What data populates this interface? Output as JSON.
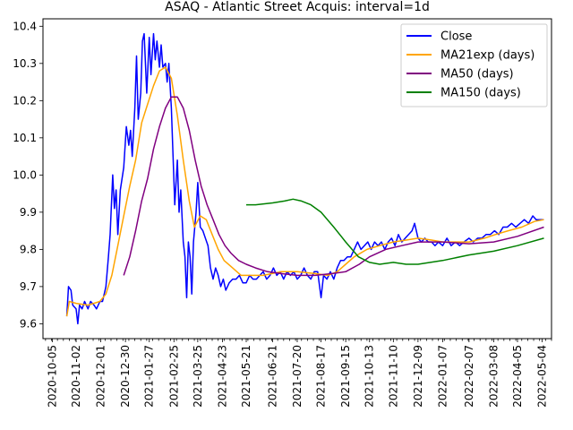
{
  "chart_data": {
    "type": "line",
    "title": "ASAQ - Atlantic Street Acquis: interval=1d",
    "xlabel": "",
    "ylabel": "",
    "xlim": [
      "2020-09-24",
      "2022-05-15"
    ],
    "ylim": [
      9.56,
      10.42
    ],
    "yticks": [
      9.6,
      9.7,
      9.8,
      9.9,
      10.0,
      10.1,
      10.2,
      10.3,
      10.4
    ],
    "ytick_labels": [
      "9.6",
      "9.7",
      "9.8",
      "9.9",
      "10.0",
      "10.1",
      "10.2",
      "10.3",
      "10.4"
    ],
    "xticks": [
      "2020-10-05",
      "2020-11-02",
      "2020-12-01",
      "2020-12-30",
      "2021-01-27",
      "2021-02-25",
      "2021-03-25",
      "2021-04-23",
      "2021-05-21",
      "2021-06-21",
      "2021-07-20",
      "2021-08-17",
      "2021-09-15",
      "2021-10-13",
      "2021-11-10",
      "2021-12-09",
      "2022-01-07",
      "2022-02-07",
      "2022-03-08",
      "2022-04-05",
      "2022-05-04"
    ],
    "grid": false,
    "legend_position": "upper right",
    "series": [
      {
        "name": "Close",
        "color": "#0000ff",
        "points": [
          [
            "2020-10-22",
            9.62
          ],
          [
            "2020-10-24",
            9.7
          ],
          [
            "2020-10-27",
            9.69
          ],
          [
            "2020-10-29",
            9.65
          ],
          [
            "2020-11-02",
            9.64
          ],
          [
            "2020-11-04",
            9.6
          ],
          [
            "2020-11-06",
            9.65
          ],
          [
            "2020-11-09",
            9.64
          ],
          [
            "2020-11-12",
            9.66
          ],
          [
            "2020-11-16",
            9.64
          ],
          [
            "2020-11-19",
            9.66
          ],
          [
            "2020-11-23",
            9.65
          ],
          [
            "2020-11-26",
            9.64
          ],
          [
            "2020-11-30",
            9.66
          ],
          [
            "2020-12-03",
            9.66
          ],
          [
            "2020-12-07",
            9.7
          ],
          [
            "2020-12-10",
            9.78
          ],
          [
            "2020-12-12",
            9.84
          ],
          [
            "2020-12-15",
            10.0
          ],
          [
            "2020-12-17",
            9.91
          ],
          [
            "2020-12-19",
            9.96
          ],
          [
            "2020-12-21",
            9.84
          ],
          [
            "2020-12-24",
            9.96
          ],
          [
            "2020-12-28",
            10.02
          ],
          [
            "2020-12-31",
            10.13
          ],
          [
            "2021-01-03",
            10.08
          ],
          [
            "2021-01-05",
            10.12
          ],
          [
            "2021-01-07",
            10.05
          ],
          [
            "2021-01-10",
            10.18
          ],
          [
            "2021-01-12",
            10.32
          ],
          [
            "2021-01-14",
            10.15
          ],
          [
            "2021-01-17",
            10.22
          ],
          [
            "2021-01-19",
            10.36
          ],
          [
            "2021-01-21",
            10.38
          ],
          [
            "2021-01-24",
            10.22
          ],
          [
            "2021-01-27",
            10.37
          ],
          [
            "2021-01-29",
            10.27
          ],
          [
            "2021-02-01",
            10.38
          ],
          [
            "2021-02-03",
            10.31
          ],
          [
            "2021-02-05",
            10.36
          ],
          [
            "2021-02-08",
            10.29
          ],
          [
            "2021-02-10",
            10.35
          ],
          [
            "2021-02-12",
            10.29
          ],
          [
            "2021-02-15",
            10.3
          ],
          [
            "2021-02-17",
            10.25
          ],
          [
            "2021-02-19",
            10.3
          ],
          [
            "2021-02-22",
            10.18
          ],
          [
            "2021-02-24",
            10.05
          ],
          [
            "2021-02-26",
            9.92
          ],
          [
            "2021-03-01",
            10.04
          ],
          [
            "2021-03-03",
            9.9
          ],
          [
            "2021-03-05",
            9.96
          ],
          [
            "2021-03-08",
            9.82
          ],
          [
            "2021-03-10",
            9.78
          ],
          [
            "2021-03-12",
            9.67
          ],
          [
            "2021-03-14",
            9.82
          ],
          [
            "2021-03-16",
            9.78
          ],
          [
            "2021-03-18",
            9.68
          ],
          [
            "2021-03-20",
            9.82
          ],
          [
            "2021-03-23",
            9.9
          ],
          [
            "2021-03-25",
            9.98
          ],
          [
            "2021-03-28",
            9.86
          ],
          [
            "2021-03-31",
            9.85
          ],
          [
            "2021-04-03",
            9.83
          ],
          [
            "2021-04-06",
            9.81
          ],
          [
            "2021-04-09",
            9.75
          ],
          [
            "2021-04-12",
            9.72
          ],
          [
            "2021-04-15",
            9.75
          ],
          [
            "2021-04-18",
            9.73
          ],
          [
            "2021-04-21",
            9.7
          ],
          [
            "2021-04-24",
            9.72
          ],
          [
            "2021-04-27",
            9.69
          ],
          [
            "2021-05-01",
            9.71
          ],
          [
            "2021-05-05",
            9.72
          ],
          [
            "2021-05-09",
            9.72
          ],
          [
            "2021-05-13",
            9.73
          ],
          [
            "2021-05-17",
            9.71
          ],
          [
            "2021-05-21",
            9.71
          ],
          [
            "2021-05-25",
            9.73
          ],
          [
            "2021-05-29",
            9.72
          ],
          [
            "2021-06-02",
            9.72
          ],
          [
            "2021-06-06",
            9.73
          ],
          [
            "2021-06-10",
            9.74
          ],
          [
            "2021-06-14",
            9.72
          ],
          [
            "2021-06-18",
            9.73
          ],
          [
            "2021-06-22",
            9.75
          ],
          [
            "2021-06-26",
            9.73
          ],
          [
            "2021-06-30",
            9.74
          ],
          [
            "2021-07-04",
            9.72
          ],
          [
            "2021-07-08",
            9.74
          ],
          [
            "2021-07-12",
            9.73
          ],
          [
            "2021-07-16",
            9.74
          ],
          [
            "2021-07-20",
            9.72
          ],
          [
            "2021-07-24",
            9.73
          ],
          [
            "2021-07-28",
            9.75
          ],
          [
            "2021-08-01",
            9.73
          ],
          [
            "2021-08-05",
            9.72
          ],
          [
            "2021-08-09",
            9.74
          ],
          [
            "2021-08-13",
            9.74
          ],
          [
            "2021-08-17",
            9.67
          ],
          [
            "2021-08-20",
            9.73
          ],
          [
            "2021-08-24",
            9.72
          ],
          [
            "2021-08-28",
            9.74
          ],
          [
            "2021-09-01",
            9.72
          ],
          [
            "2021-09-05",
            9.75
          ],
          [
            "2021-09-09",
            9.77
          ],
          [
            "2021-09-13",
            9.77
          ],
          [
            "2021-09-17",
            9.78
          ],
          [
            "2021-09-21",
            9.78
          ],
          [
            "2021-09-25",
            9.8
          ],
          [
            "2021-09-29",
            9.82
          ],
          [
            "2021-10-03",
            9.8
          ],
          [
            "2021-10-07",
            9.81
          ],
          [
            "2021-10-11",
            9.82
          ],
          [
            "2021-10-15",
            9.8
          ],
          [
            "2021-10-19",
            9.82
          ],
          [
            "2021-10-23",
            9.81
          ],
          [
            "2021-10-27",
            9.82
          ],
          [
            "2021-10-31",
            9.8
          ],
          [
            "2021-11-04",
            9.82
          ],
          [
            "2021-11-08",
            9.83
          ],
          [
            "2021-11-12",
            9.81
          ],
          [
            "2021-11-16",
            9.84
          ],
          [
            "2021-11-20",
            9.82
          ],
          [
            "2021-11-24",
            9.83
          ],
          [
            "2021-11-28",
            9.84
          ],
          [
            "2021-12-02",
            9.85
          ],
          [
            "2021-12-05",
            9.87
          ],
          [
            "2021-12-09",
            9.83
          ],
          [
            "2021-12-13",
            9.82
          ],
          [
            "2021-12-17",
            9.83
          ],
          [
            "2021-12-21",
            9.82
          ],
          [
            "2021-12-25",
            9.82
          ],
          [
            "2021-12-29",
            9.81
          ],
          [
            "2022-01-02",
            9.82
          ],
          [
            "2022-01-07",
            9.81
          ],
          [
            "2022-01-12",
            9.83
          ],
          [
            "2022-01-17",
            9.81
          ],
          [
            "2022-01-22",
            9.82
          ],
          [
            "2022-01-27",
            9.81
          ],
          [
            "2022-02-01",
            9.82
          ],
          [
            "2022-02-07",
            9.83
          ],
          [
            "2022-02-12",
            9.82
          ],
          [
            "2022-02-17",
            9.83
          ],
          [
            "2022-02-22",
            9.83
          ],
          [
            "2022-02-27",
            9.84
          ],
          [
            "2022-03-04",
            9.84
          ],
          [
            "2022-03-09",
            9.85
          ],
          [
            "2022-03-14",
            9.84
          ],
          [
            "2022-03-19",
            9.86
          ],
          [
            "2022-03-24",
            9.86
          ],
          [
            "2022-03-29",
            9.87
          ],
          [
            "2022-04-03",
            9.86
          ],
          [
            "2022-04-08",
            9.87
          ],
          [
            "2022-04-13",
            9.88
          ],
          [
            "2022-04-18",
            9.87
          ],
          [
            "2022-04-23",
            9.89
          ],
          [
            "2022-04-27",
            9.88
          ],
          [
            "2022-05-02",
            9.88
          ],
          [
            "2022-05-06",
            9.88
          ]
        ]
      },
      {
        "name": "MA21exp (days)",
        "color": "#ffa500",
        "points": [
          [
            "2020-10-22",
            9.62
          ],
          [
            "2020-10-25",
            9.66
          ],
          [
            "2020-11-02",
            9.655
          ],
          [
            "2020-11-16",
            9.65
          ],
          [
            "2020-11-30",
            9.66
          ],
          [
            "2020-12-07",
            9.68
          ],
          [
            "2020-12-14",
            9.73
          ],
          [
            "2020-12-21",
            9.81
          ],
          [
            "2020-12-28",
            9.89
          ],
          [
            "2021-01-04",
            9.97
          ],
          [
            "2021-01-11",
            10.04
          ],
          [
            "2021-01-18",
            10.14
          ],
          [
            "2021-01-25",
            10.19
          ],
          [
            "2021-02-01",
            10.24
          ],
          [
            "2021-02-08",
            10.28
          ],
          [
            "2021-02-15",
            10.29
          ],
          [
            "2021-02-22",
            10.26
          ],
          [
            "2021-03-01",
            10.16
          ],
          [
            "2021-03-08",
            10.04
          ],
          [
            "2021-03-15",
            9.93
          ],
          [
            "2021-03-21",
            9.86
          ],
          [
            "2021-03-28",
            9.89
          ],
          [
            "2021-04-04",
            9.88
          ],
          [
            "2021-04-11",
            9.84
          ],
          [
            "2021-04-18",
            9.8
          ],
          [
            "2021-04-25",
            9.77
          ],
          [
            "2021-05-05",
            9.75
          ],
          [
            "2021-05-15",
            9.73
          ],
          [
            "2021-05-25",
            9.73
          ],
          [
            "2021-06-10",
            9.73
          ],
          [
            "2021-07-01",
            9.74
          ],
          [
            "2021-07-20",
            9.74
          ],
          [
            "2021-08-10",
            9.735
          ],
          [
            "2021-08-25",
            9.73
          ],
          [
            "2021-09-05",
            9.74
          ],
          [
            "2021-09-15",
            9.76
          ],
          [
            "2021-09-25",
            9.78
          ],
          [
            "2021-10-10",
            9.8
          ],
          [
            "2021-10-25",
            9.81
          ],
          [
            "2021-11-10",
            9.82
          ],
          [
            "2021-11-25",
            9.825
          ],
          [
            "2021-12-09",
            9.83
          ],
          [
            "2021-12-25",
            9.825
          ],
          [
            "2022-01-07",
            9.82
          ],
          [
            "2022-01-25",
            9.82
          ],
          [
            "2022-02-07",
            9.82
          ],
          [
            "2022-02-25",
            9.83
          ],
          [
            "2022-03-10",
            9.84
          ],
          [
            "2022-03-25",
            9.85
          ],
          [
            "2022-04-10",
            9.86
          ],
          [
            "2022-04-25",
            9.875
          ],
          [
            "2022-05-06",
            9.88
          ]
        ]
      },
      {
        "name": "MA50 (days)",
        "color": "#800080",
        "points": [
          [
            "2020-12-28",
            9.73
          ],
          [
            "2021-01-04",
            9.78
          ],
          [
            "2021-01-11",
            9.85
          ],
          [
            "2021-01-18",
            9.93
          ],
          [
            "2021-01-25",
            9.99
          ],
          [
            "2021-02-01",
            10.07
          ],
          [
            "2021-02-08",
            10.13
          ],
          [
            "2021-02-15",
            10.18
          ],
          [
            "2021-02-22",
            10.21
          ],
          [
            "2021-03-01",
            10.21
          ],
          [
            "2021-03-08",
            10.18
          ],
          [
            "2021-03-15",
            10.12
          ],
          [
            "2021-03-22",
            10.04
          ],
          [
            "2021-03-29",
            9.97
          ],
          [
            "2021-04-05",
            9.92
          ],
          [
            "2021-04-12",
            9.88
          ],
          [
            "2021-04-19",
            9.84
          ],
          [
            "2021-04-26",
            9.81
          ],
          [
            "2021-05-03",
            9.79
          ],
          [
            "2021-05-12",
            9.77
          ],
          [
            "2021-05-21",
            9.76
          ],
          [
            "2021-06-01",
            9.75
          ],
          [
            "2021-06-15",
            9.74
          ],
          [
            "2021-07-01",
            9.735
          ],
          [
            "2021-07-20",
            9.73
          ],
          [
            "2021-08-10",
            9.73
          ],
          [
            "2021-08-30",
            9.735
          ],
          [
            "2021-09-15",
            9.74
          ],
          [
            "2021-10-01",
            9.76
          ],
          [
            "2021-10-13",
            9.78
          ],
          [
            "2021-11-01",
            9.8
          ],
          [
            "2021-11-20",
            9.81
          ],
          [
            "2021-12-09",
            9.82
          ],
          [
            "2022-01-07",
            9.82
          ],
          [
            "2022-02-07",
            9.815
          ],
          [
            "2022-03-08",
            9.82
          ],
          [
            "2022-04-05",
            9.835
          ],
          [
            "2022-05-06",
            9.86
          ]
        ]
      },
      {
        "name": "MA150 (days)",
        "color": "#008000",
        "points": [
          [
            "2021-05-21",
            9.92
          ],
          [
            "2021-06-01",
            9.92
          ],
          [
            "2021-06-21",
            9.925
          ],
          [
            "2021-07-05",
            9.93
          ],
          [
            "2021-07-15",
            9.935
          ],
          [
            "2021-07-25",
            9.93
          ],
          [
            "2021-08-05",
            9.92
          ],
          [
            "2021-08-17",
            9.9
          ],
          [
            "2021-09-01",
            9.86
          ],
          [
            "2021-09-15",
            9.82
          ],
          [
            "2021-09-30",
            9.78
          ],
          [
            "2021-10-13",
            9.765
          ],
          [
            "2021-10-25",
            9.76
          ],
          [
            "2021-11-10",
            9.765
          ],
          [
            "2021-11-25",
            9.76
          ],
          [
            "2021-12-09",
            9.76
          ],
          [
            "2022-01-07",
            9.77
          ],
          [
            "2022-02-07",
            9.785
          ],
          [
            "2022-03-08",
            9.795
          ],
          [
            "2022-04-05",
            9.81
          ],
          [
            "2022-05-06",
            9.83
          ]
        ]
      }
    ]
  }
}
